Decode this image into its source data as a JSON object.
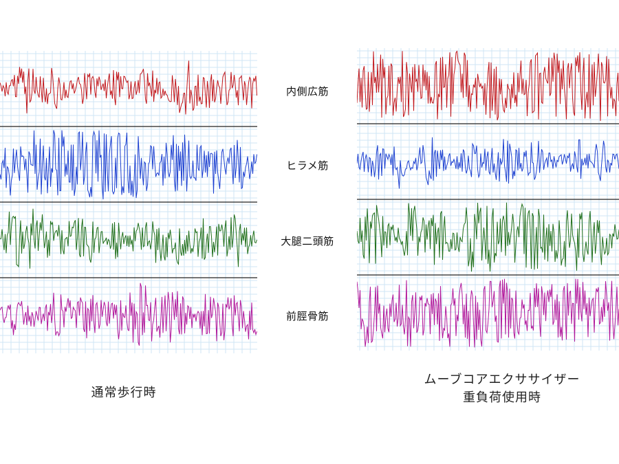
{
  "chart_data": {
    "type": "line",
    "panels": [
      {
        "caption_lines": [
          "通常歩行時"
        ],
        "traces": [
          {
            "muscle": "内側広筋",
            "color": "#c0151a",
            "activity": 0.35
          },
          {
            "muscle": "ヒラメ筋",
            "color": "#1b3fd0",
            "activity": 0.85
          },
          {
            "muscle": "大腿二頭筋",
            "color": "#1f6e1a",
            "activity": 0.45
          },
          {
            "muscle": "前脛骨筋",
            "color": "#b0169a",
            "activity": 0.4
          }
        ]
      },
      {
        "caption_lines": [
          "ムーブコアエクササイザー",
          "重負荷使用時"
        ],
        "traces": [
          {
            "muscle": "内側広筋",
            "color": "#c0151a",
            "activity": 0.9
          },
          {
            "muscle": "ヒラメ筋",
            "color": "#1b3fd0",
            "activity": 0.45
          },
          {
            "muscle": "大腿二頭筋",
            "color": "#1f6e1a",
            "activity": 0.85
          },
          {
            "muscle": "前脛骨筋",
            "color": "#b0169a",
            "activity": 0.95
          }
        ]
      }
    ],
    "muscle_labels": [
      "内側広筋",
      "ヒラメ筋",
      "大腿二頭筋",
      "前脛骨筋"
    ],
    "grid": true
  }
}
